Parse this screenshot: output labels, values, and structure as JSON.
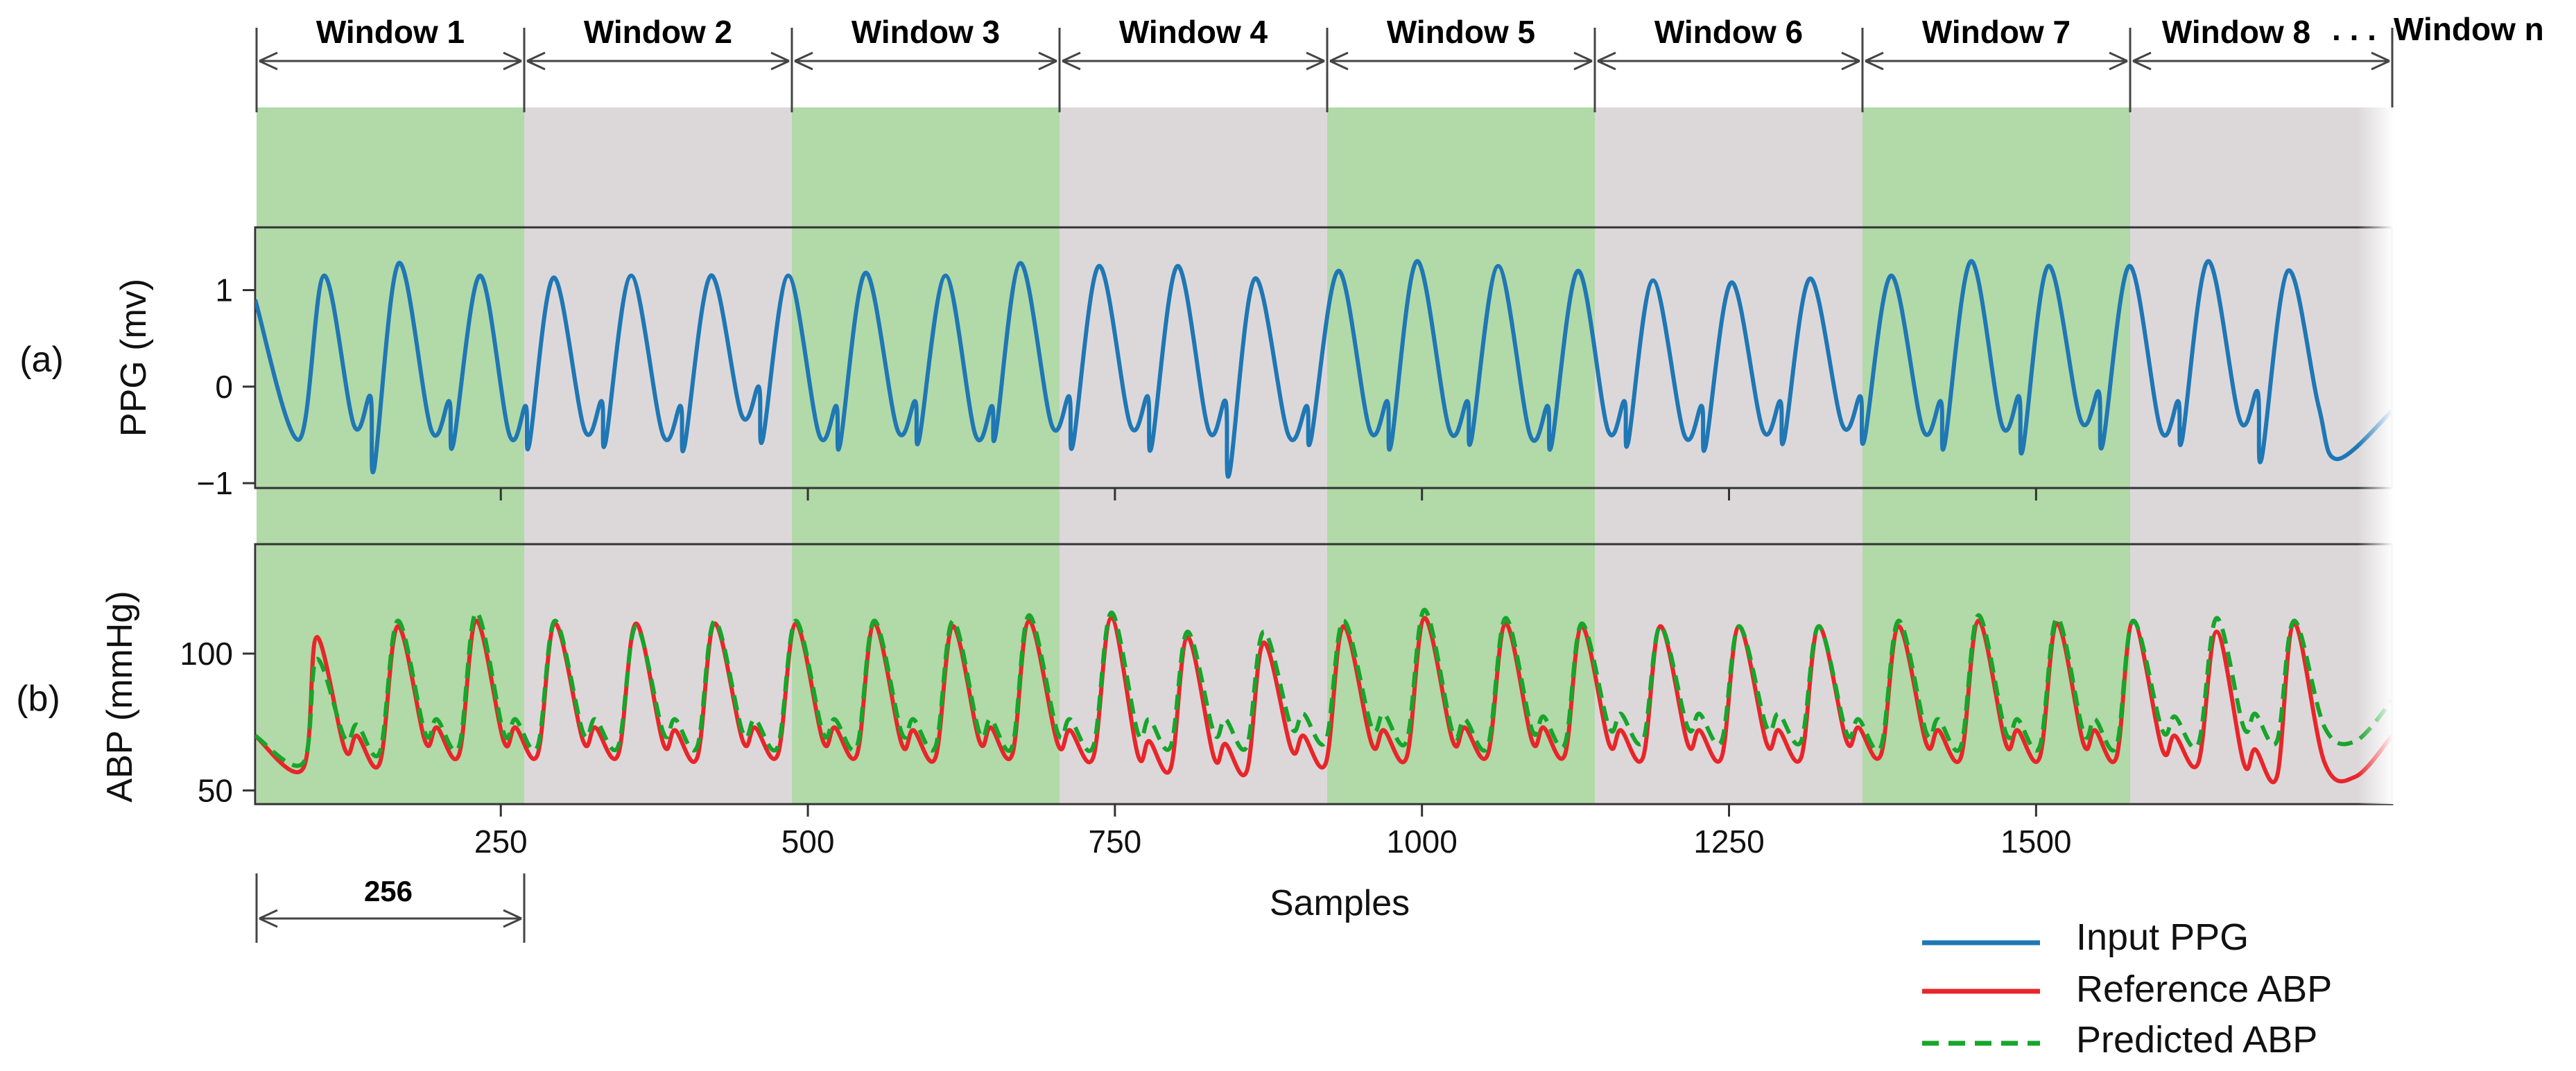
{
  "windows": {
    "labels": [
      "Window 1",
      "Window 2",
      "Window 3",
      "Window 4",
      "Window 5",
      "Window 6",
      "Window 7",
      "Window 8",
      "Window n"
    ],
    "ellipsis": ". . .",
    "size_label": "256",
    "colors": {
      "odd": "#b2d9a8",
      "even": "#dcd8da"
    }
  },
  "chart_data": [
    {
      "type": "line",
      "panel_label": "(a)",
      "ylabel": "PPG (mv)",
      "xlabel": "",
      "xlim": [
        50,
        1790
      ],
      "ylim": [
        -1.05,
        1.65
      ],
      "yticks": [
        -1,
        0,
        1
      ],
      "ytick_labels": [
        "−1",
        "0",
        "1"
      ],
      "xticks": [
        250,
        500,
        750,
        1000,
        1250,
        1500
      ],
      "show_x_tick_labels": false,
      "grid": false,
      "series": [
        {
          "name": "Input PPG",
          "color": "#1f77b4",
          "style": "solid",
          "peaks_x": [
            106,
            167,
            233,
            293,
            356,
            421,
            484,
            547,
            612,
            673,
            737,
            801,
            864,
            932,
            996,
            1062,
            1127,
            1188,
            1252,
            1316,
            1382,
            1447,
            1510,
            1576,
            1640,
            1705
          ],
          "peaks_y": [
            1.15,
            1.28,
            1.15,
            1.13,
            1.15,
            1.15,
            1.15,
            1.18,
            1.15,
            1.28,
            1.25,
            1.25,
            1.12,
            1.2,
            1.3,
            1.25,
            1.2,
            1.1,
            1.08,
            1.12,
            1.15,
            1.3,
            1.25,
            1.25,
            1.3,
            1.2
          ],
          "troughs_y": [
            -0.55,
            -0.85,
            -0.6,
            -0.6,
            -0.58,
            -0.62,
            -0.55,
            -0.6,
            -0.55,
            -0.5,
            -0.6,
            -0.62,
            -0.9,
            -0.55,
            -0.6,
            -0.55,
            -0.6,
            -0.58,
            -0.62,
            -0.55,
            -0.55,
            -0.6,
            -0.65,
            -0.6,
            -0.55,
            -0.75
          ],
          "notch_y": [
            -0.1,
            -0.15,
            -0.2,
            -0.15,
            -0.2,
            0.0,
            -0.2,
            -0.15,
            -0.2,
            -0.1,
            -0.1,
            -0.15,
            -0.2,
            -0.15,
            -0.15,
            -0.2,
            -0.15,
            -0.2,
            -0.15,
            -0.1,
            -0.15,
            -0.1,
            -0.05,
            -0.15,
            -0.05,
            -0.1
          ]
        }
      ]
    },
    {
      "type": "line",
      "panel_label": "(b)",
      "ylabel": "ABP (mmHg)",
      "xlabel": "Samples",
      "xlim": [
        50,
        1790
      ],
      "ylim": [
        45,
        140
      ],
      "yticks": [
        50,
        100
      ],
      "ytick_labels": [
        "50",
        "100"
      ],
      "xticks": [
        250,
        500,
        750,
        1000,
        1250,
        1500
      ],
      "xtick_labels": [
        "250",
        "500",
        "750",
        "1000",
        "1250",
        "1500"
      ],
      "grid": false,
      "series": [
        {
          "name": "Reference ABP",
          "color": "#e8262a",
          "style": "solid",
          "peaks_x": [
            100,
            166,
            230,
            294,
            360,
            424,
            490,
            554,
            618,
            680,
            747,
            809,
            871,
            936,
            1002,
            1068,
            1130,
            1194,
            1258,
            1323,
            1388,
            1453,
            1517,
            1579,
            1647,
            1710
          ],
          "peaks_y": [
            106,
            110,
            112,
            111,
            111,
            111,
            111,
            111,
            110,
            112,
            113,
            106,
            104,
            110,
            113,
            111,
            110,
            110,
            110,
            110,
            110,
            112,
            111,
            112,
            108,
            111
          ],
          "troughs_y": [
            58,
            60,
            63,
            63,
            63,
            62,
            63,
            63,
            62,
            63,
            62,
            58,
            57,
            60,
            62,
            63,
            63,
            62,
            62,
            62,
            63,
            62,
            62,
            62,
            60,
            55
          ]
        },
        {
          "name": "Predicted ABP",
          "color": "#17a52a",
          "style": "dashed",
          "peaks_x": [
            100,
            166,
            230,
            294,
            360,
            424,
            490,
            554,
            618,
            680,
            747,
            809,
            871,
            936,
            1002,
            1068,
            1130,
            1194,
            1258,
            1323,
            1388,
            1453,
            1517,
            1579,
            1647,
            1710
          ],
          "peaks_y": [
            98,
            112,
            115,
            112,
            110,
            112,
            112,
            112,
            112,
            114,
            115,
            108,
            108,
            112,
            116,
            113,
            111,
            110,
            110,
            110,
            112,
            114,
            113,
            112,
            113,
            112
          ],
          "troughs_y": [
            60,
            64,
            66,
            66,
            66,
            66,
            66,
            66,
            66,
            66,
            66,
            66,
            66,
            68,
            68,
            66,
            67,
            68,
            68,
            68,
            66,
            66,
            66,
            66,
            67,
            68
          ]
        }
      ]
    }
  ],
  "legend": {
    "items": [
      {
        "label": "Input PPG",
        "color": "#1f77b4",
        "style": "solid"
      },
      {
        "label": "Reference ABP",
        "color": "#e8262a",
        "style": "solid"
      },
      {
        "label": "Predicted ABP",
        "color": "#17a52a",
        "style": "dashed"
      }
    ]
  }
}
